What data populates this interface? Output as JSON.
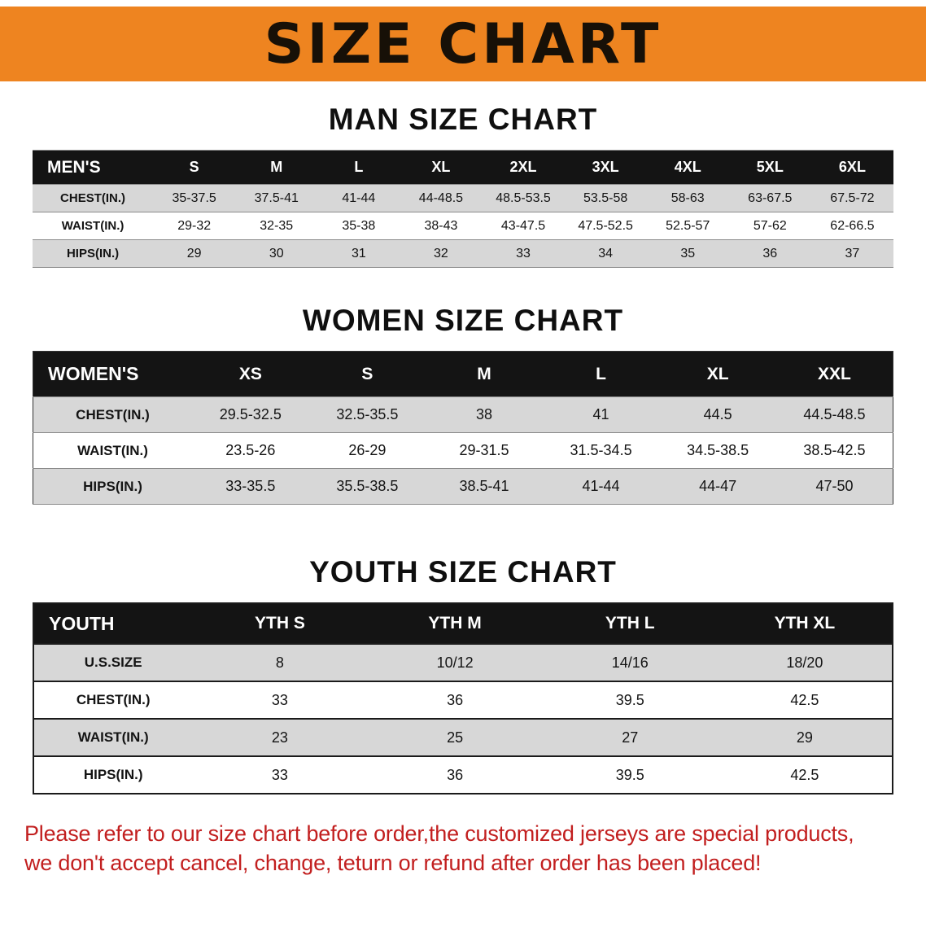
{
  "banner": {
    "title": "SIZE CHART",
    "background_color": "#ee8420",
    "text_color": "#171007"
  },
  "sections": [
    {
      "heading": "MAN SIZE CHART",
      "table": {
        "header": [
          "MEN'S",
          "S",
          "M",
          "L",
          "XL",
          "2XL",
          "3XL",
          "4XL",
          "5XL",
          "6XL"
        ],
        "rows": [
          [
            "CHEST(IN.)",
            "35-37.5",
            "37.5-41",
            "41-44",
            "44-48.5",
            "48.5-53.5",
            "53.5-58",
            "58-63",
            "63-67.5",
            "67.5-72"
          ],
          [
            "WAIST(IN.)",
            "29-32",
            "32-35",
            "35-38",
            "38-43",
            "43-47.5",
            "47.5-52.5",
            "52.5-57",
            "57-62",
            "62-66.5"
          ],
          [
            "HIPS(IN.)",
            "29",
            "30",
            "31",
            "32",
            "33",
            "34",
            "35",
            "36",
            "37"
          ]
        ]
      }
    },
    {
      "heading": "WOMEN SIZE CHART",
      "table": {
        "header": [
          "WOMEN'S",
          "XS",
          "S",
          "M",
          "L",
          "XL",
          "XXL"
        ],
        "rows": [
          [
            "CHEST(IN.)",
            "29.5-32.5",
            "32.5-35.5",
            "38",
            "41",
            "44.5",
            "44.5-48.5"
          ],
          [
            "WAIST(IN.)",
            "23.5-26",
            "26-29",
            "29-31.5",
            "31.5-34.5",
            "34.5-38.5",
            "38.5-42.5"
          ],
          [
            "HIPS(IN.)",
            "33-35.5",
            "35.5-38.5",
            "38.5-41",
            "41-44",
            "44-47",
            "47-50"
          ]
        ]
      }
    },
    {
      "heading": "YOUTH SIZE CHART",
      "table": {
        "header": [
          "YOUTH",
          "YTH S",
          "YTH M",
          "YTH L",
          "YTH XL"
        ],
        "rows": [
          [
            "U.S.SIZE",
            "8",
            "10/12",
            "14/16",
            "18/20"
          ],
          [
            "CHEST(IN.)",
            "33",
            "36",
            "39.5",
            "42.5"
          ],
          [
            "WAIST(IN.)",
            "23",
            "25",
            "27",
            "29"
          ],
          [
            "HIPS(IN.)",
            "33",
            "36",
            "39.5",
            "42.5"
          ]
        ]
      }
    }
  ],
  "footer": {
    "lines": [
      "Please refer to our size chart before order,the customized jerseys are special products,",
      "we don't accept cancel, change, teturn or refund after order has been placed!"
    ],
    "text_color": "#c21f1f"
  },
  "colors": {
    "banner_orange": "#ee8420",
    "table_header_black": "#141414",
    "row_gray": "#d7d7d7",
    "notice_red": "#c21f1f"
  }
}
